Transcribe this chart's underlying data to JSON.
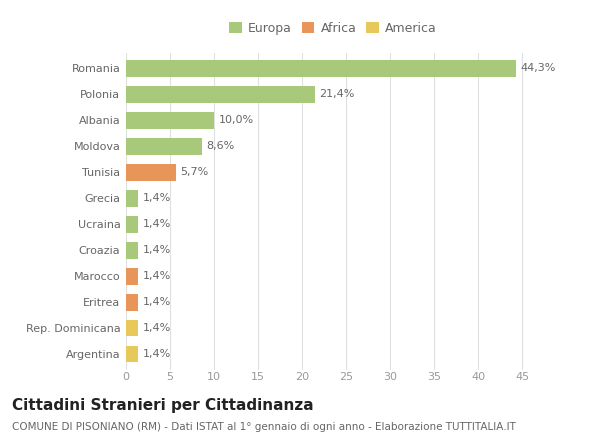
{
  "categories": [
    "Argentina",
    "Rep. Dominicana",
    "Eritrea",
    "Marocco",
    "Croazia",
    "Ucraina",
    "Grecia",
    "Tunisia",
    "Moldova",
    "Albania",
    "Polonia",
    "Romania"
  ],
  "values": [
    1.4,
    1.4,
    1.4,
    1.4,
    1.4,
    1.4,
    1.4,
    5.7,
    8.6,
    10.0,
    21.4,
    44.3
  ],
  "labels": [
    "1,4%",
    "1,4%",
    "1,4%",
    "1,4%",
    "1,4%",
    "1,4%",
    "1,4%",
    "5,7%",
    "8,6%",
    "10,0%",
    "21,4%",
    "44,3%"
  ],
  "colors": [
    "#e8c85a",
    "#e8c85a",
    "#e8955a",
    "#e8955a",
    "#a8c87a",
    "#a8c87a",
    "#a8c87a",
    "#e8955a",
    "#a8c87a",
    "#a8c87a",
    "#a8c87a",
    "#a8c87a"
  ],
  "legend_labels": [
    "Europa",
    "Africa",
    "America"
  ],
  "legend_colors": [
    "#a8c87a",
    "#e8955a",
    "#e8c85a"
  ],
  "title": "Cittadini Stranieri per Cittadinanza",
  "subtitle": "COMUNE DI PISONIANO (RM) - Dati ISTAT al 1° gennaio di ogni anno - Elaborazione TUTTITALIA.IT",
  "xlim": [
    0,
    47
  ],
  "xticks": [
    0,
    5,
    10,
    15,
    20,
    25,
    30,
    35,
    40,
    45
  ],
  "bg_color": "#ffffff",
  "grid_color": "#e0e0e0",
  "bar_height": 0.65,
  "title_fontsize": 11,
  "subtitle_fontsize": 7.5,
  "label_fontsize": 8,
  "tick_fontsize": 8,
  "legend_fontsize": 9
}
